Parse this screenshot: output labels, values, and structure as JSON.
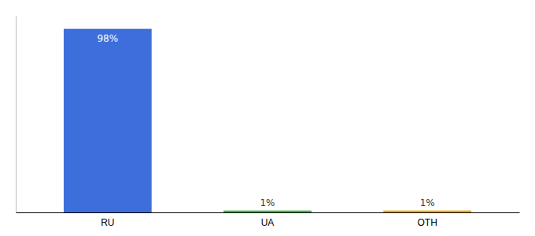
{
  "chart_data": {
    "type": "bar",
    "categories": [
      "RU",
      "UA",
      "OTH"
    ],
    "values": [
      98,
      1,
      1
    ],
    "value_labels": [
      "98%",
      "1%",
      "1%"
    ],
    "colors": [
      "#3d6edb",
      "#4caf50",
      "#f0a800"
    ],
    "ylim": [
      0,
      105
    ],
    "data_labels": true,
    "tick_labels": "x"
  }
}
